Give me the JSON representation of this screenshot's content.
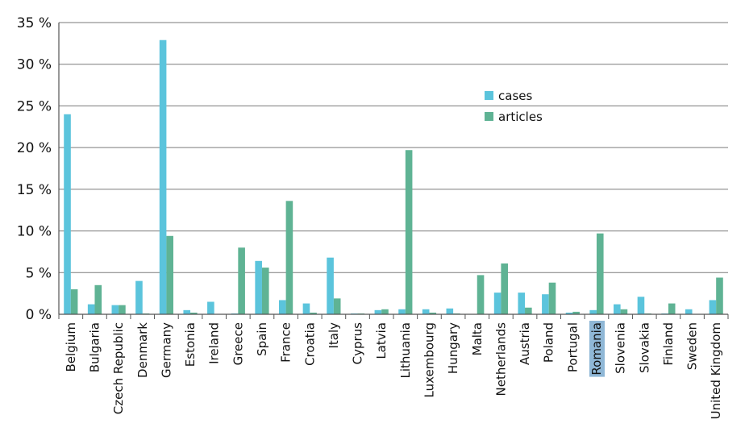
{
  "chart_data": {
    "type": "bar",
    "categories": [
      "Belgium",
      "Bulgaria",
      "Czech Republic",
      "Denmark",
      "Germany",
      "Estonia",
      "Ireland",
      "Greece",
      "Spain",
      "France",
      "Croatia",
      "Italy",
      "Cyprus",
      "Latvia",
      "Lithuania",
      "Luxembourg",
      "Hungary",
      "Malta",
      "Netherlands",
      "Austria",
      "Poland",
      "Portugal",
      "Romania",
      "Slovenia",
      "Slovakia",
      "Finland",
      "Sweden",
      "United Kingdom"
    ],
    "series": [
      {
        "name": "cases",
        "color": "#5bc4dc",
        "values": [
          24.0,
          1.2,
          1.1,
          4.0,
          32.9,
          0.5,
          1.5,
          0.1,
          6.4,
          1.7,
          1.3,
          6.8,
          0.1,
          0.5,
          0.6,
          0.6,
          0.7,
          0.0,
          2.6,
          2.6,
          2.4,
          0.2,
          0.5,
          1.2,
          2.1,
          0.1,
          0.6,
          1.7
        ]
      },
      {
        "name": "articles",
        "color": "#5fb394",
        "values": [
          3.0,
          3.5,
          1.1,
          0.1,
          9.4,
          0.2,
          0.0,
          8.0,
          5.6,
          13.6,
          0.2,
          1.9,
          0.1,
          0.6,
          19.7,
          0.2,
          0.1,
          4.7,
          6.1,
          0.8,
          3.8,
          0.3,
          9.7,
          0.6,
          0.1,
          1.3,
          0.0,
          4.4
        ]
      }
    ],
    "ylim": [
      0,
      35
    ],
    "yticks": [
      0,
      5,
      10,
      15,
      20,
      25,
      30,
      35
    ],
    "ytick_labels": [
      "0 %",
      "5 %",
      "10 %",
      "15 %",
      "20 %",
      "25 %",
      "30 %",
      "35 %"
    ],
    "grid": true,
    "legend_position": "top-right",
    "highlighted_category": "Romania",
    "highlight_color": "#8fb7d6"
  }
}
